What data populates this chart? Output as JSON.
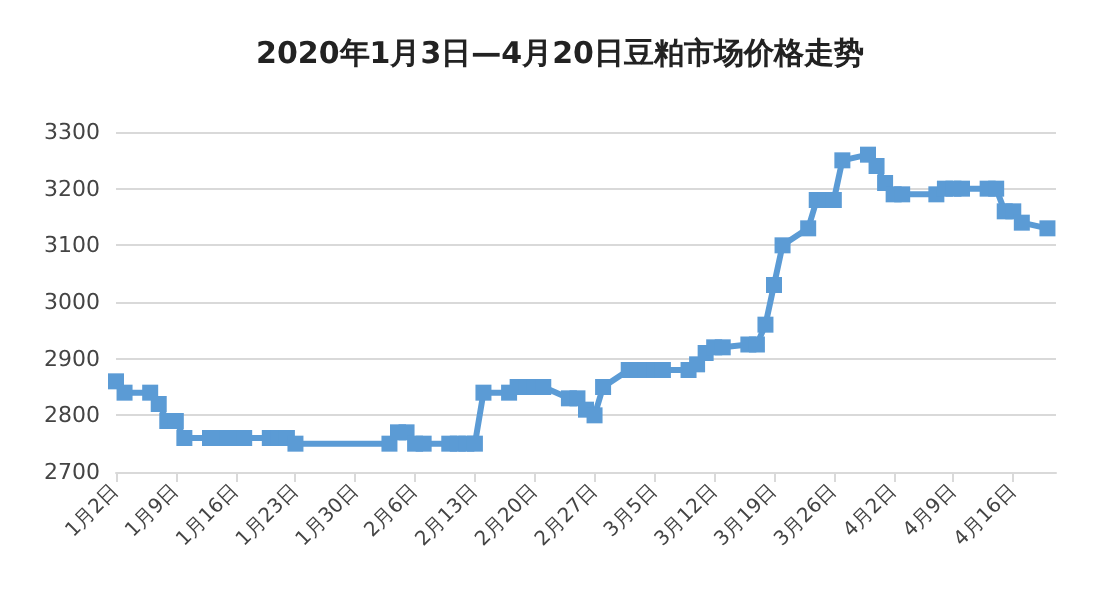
{
  "chart_data": {
    "type": "line",
    "title": "2020年1月3日—4月20日豆粕市场价格走势",
    "x": [
      "2020-01-02",
      "2020-01-03",
      "2020-01-06",
      "2020-01-07",
      "2020-01-08",
      "2020-01-09",
      "2020-01-10",
      "2020-01-13",
      "2020-01-14",
      "2020-01-15",
      "2020-01-16",
      "2020-01-17",
      "2020-01-20",
      "2020-01-21",
      "2020-01-22",
      "2020-01-23",
      "2020-02-03",
      "2020-02-04",
      "2020-02-05",
      "2020-02-06",
      "2020-02-07",
      "2020-02-10",
      "2020-02-11",
      "2020-02-12",
      "2020-02-13",
      "2020-02-14",
      "2020-02-17",
      "2020-02-18",
      "2020-02-19",
      "2020-02-20",
      "2020-02-21",
      "2020-02-24",
      "2020-02-25",
      "2020-02-26",
      "2020-02-27",
      "2020-02-28",
      "2020-03-02",
      "2020-03-03",
      "2020-03-04",
      "2020-03-05",
      "2020-03-06",
      "2020-03-09",
      "2020-03-10",
      "2020-03-11",
      "2020-03-12",
      "2020-03-13",
      "2020-03-16",
      "2020-03-17",
      "2020-03-18",
      "2020-03-19",
      "2020-03-20",
      "2020-03-23",
      "2020-03-24",
      "2020-03-25",
      "2020-03-26",
      "2020-03-27",
      "2020-03-30",
      "2020-03-31",
      "2020-04-01",
      "2020-04-02",
      "2020-04-03",
      "2020-04-07",
      "2020-04-08",
      "2020-04-09",
      "2020-04-10",
      "2020-04-13",
      "2020-04-14",
      "2020-04-15",
      "2020-04-16",
      "2020-04-17",
      "2020-04-20"
    ],
    "series": [
      {
        "color": "#5b9bd5",
        "values": [
          2860,
          2840,
          2840,
          2820,
          2790,
          2790,
          2760,
          2760,
          2760,
          2760,
          2760,
          2760,
          2760,
          2760,
          2760,
          2750,
          2750,
          2770,
          2770,
          2750,
          2750,
          2750,
          2750,
          2750,
          2750,
          2840,
          2840,
          2850,
          2850,
          2850,
          2850,
          2830,
          2830,
          2810,
          2800,
          2850,
          2880,
          2880,
          2880,
          2880,
          2880,
          2880,
          2890,
          2910,
          2920,
          2920,
          2925,
          2925,
          2960,
          3030,
          3100,
          3130,
          3180,
          3180,
          3180,
          3250,
          3260,
          3240,
          3210,
          3190,
          3190,
          3190,
          3200,
          3200,
          3200,
          3200,
          3200,
          3160,
          3160,
          3140,
          3130
        ]
      }
    ],
    "xlim": [
      "2020-01-02",
      "2020-04-21"
    ],
    "xticks": [
      {
        "value": "2020-01-02",
        "label": "1月2日"
      },
      {
        "value": "2020-01-09",
        "label": "1月9日"
      },
      {
        "value": "2020-01-16",
        "label": "1月16日"
      },
      {
        "value": "2020-01-23",
        "label": "1月23日"
      },
      {
        "value": "2020-01-30",
        "label": "1月30日"
      },
      {
        "value": "2020-02-06",
        "label": "2月6日"
      },
      {
        "value": "2020-02-13",
        "label": "2月13日"
      },
      {
        "value": "2020-02-20",
        "label": "2月20日"
      },
      {
        "value": "2020-02-27",
        "label": "2月27日"
      },
      {
        "value": "2020-03-05",
        "label": "3月5日"
      },
      {
        "value": "2020-03-12",
        "label": "3月12日"
      },
      {
        "value": "2020-03-19",
        "label": "3月19日"
      },
      {
        "value": "2020-03-26",
        "label": "3月26日"
      },
      {
        "value": "2020-04-02",
        "label": "4月2日"
      },
      {
        "value": "2020-04-09",
        "label": "4月9日"
      },
      {
        "value": "2020-04-16",
        "label": "4月16日"
      }
    ],
    "ylim": [
      2700,
      3300
    ],
    "yticks": [
      2700,
      2800,
      2900,
      3000,
      3100,
      3200,
      3300
    ],
    "grid": "y",
    "marker": "square",
    "line_style": "solid"
  }
}
